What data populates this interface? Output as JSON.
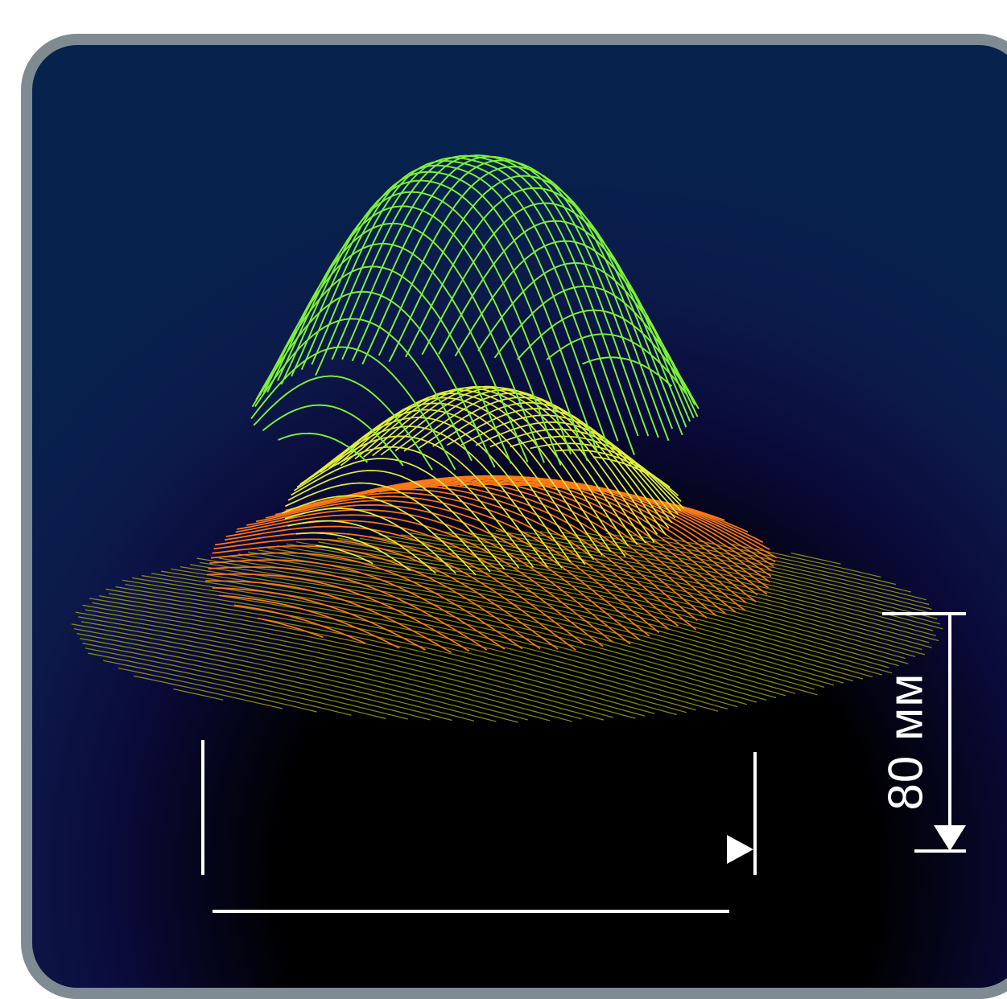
{
  "dimension": {
    "height_label": "80 мм"
  },
  "colors": {
    "frame": "#7f8b92",
    "background_top": "#05234d",
    "mesh_green": "#7cf03a",
    "mesh_yellow": "#dff03a",
    "mesh_orange": "#ff7a1a",
    "dimension_lines": "#ffffff"
  }
}
